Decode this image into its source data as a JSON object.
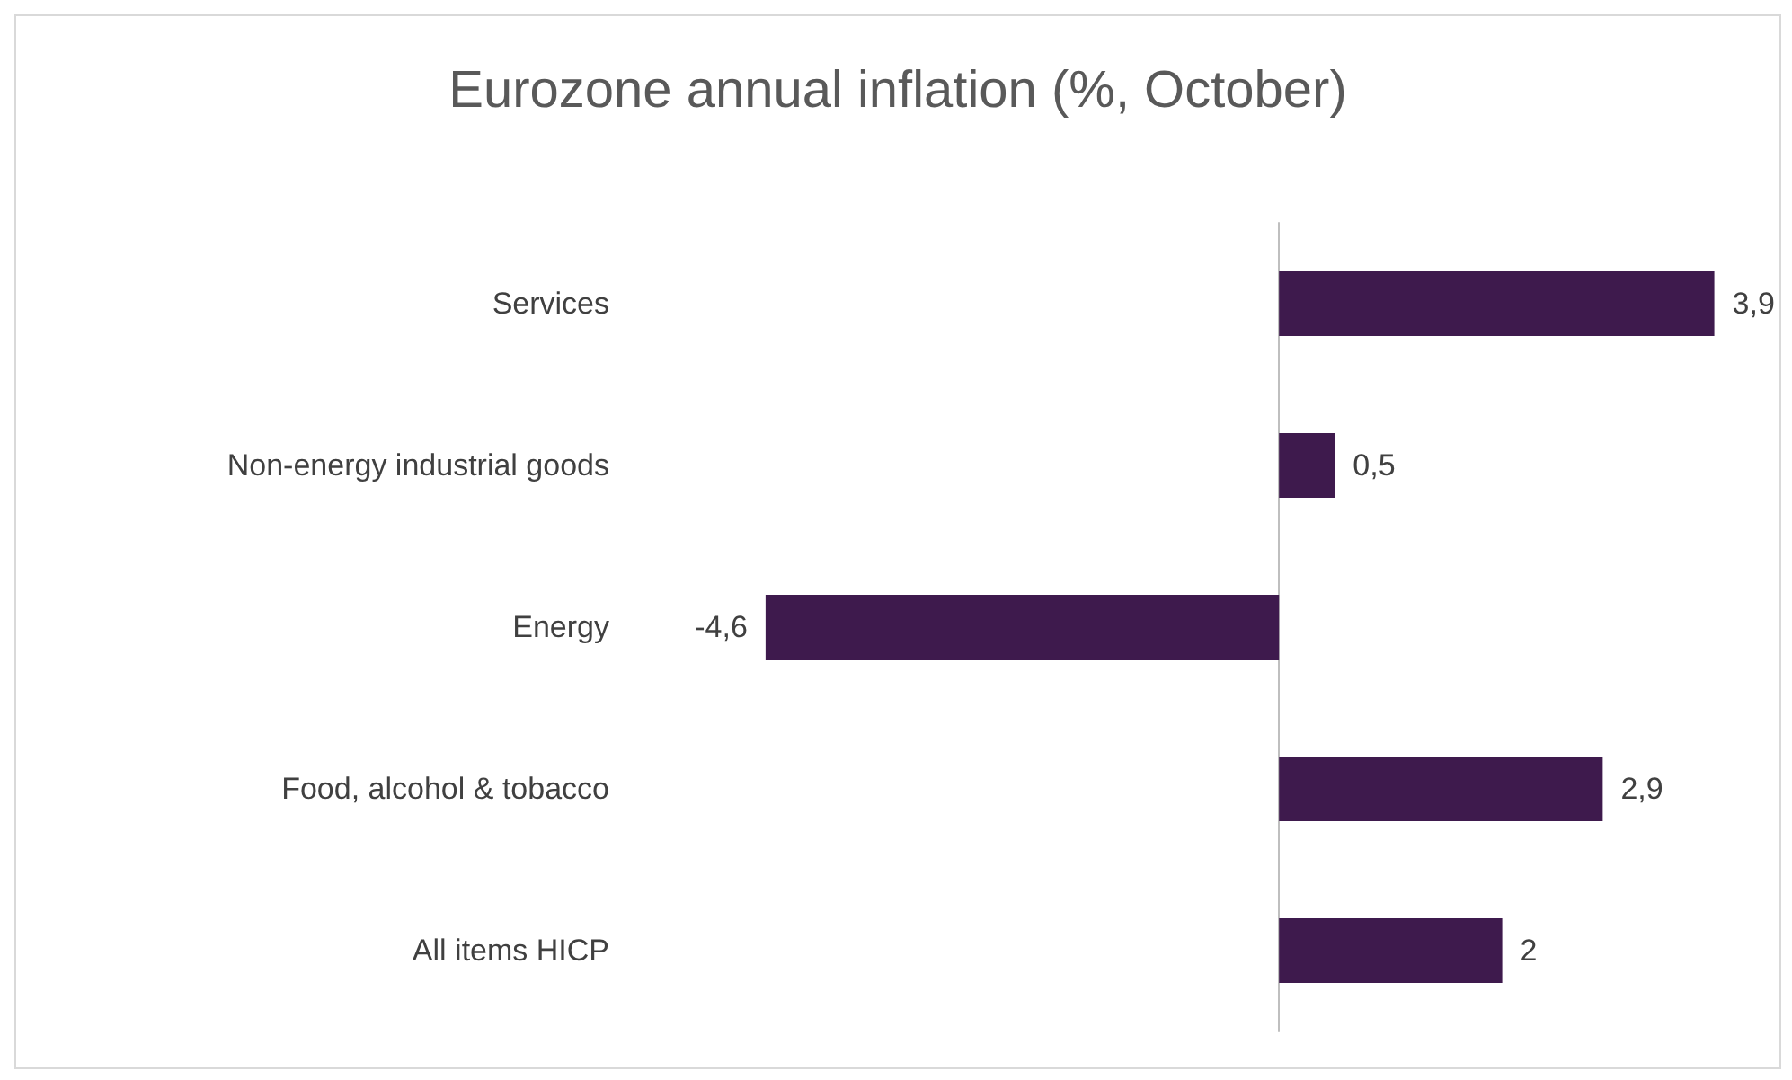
{
  "chart_data": {
    "type": "bar",
    "orientation": "horizontal",
    "title": "Eurozone annual inflation (%, October)",
    "categories": [
      "Services",
      "Non-energy industrial goods",
      "Energy",
      "Food, alcohol & tobacco",
      "All items HICP"
    ],
    "values": [
      3.9,
      0.5,
      -4.6,
      2.9,
      2
    ],
    "value_labels": [
      "3,9",
      "0,5",
      "-4,6",
      "2,9",
      "2"
    ],
    "color": "#3e1a4d"
  }
}
